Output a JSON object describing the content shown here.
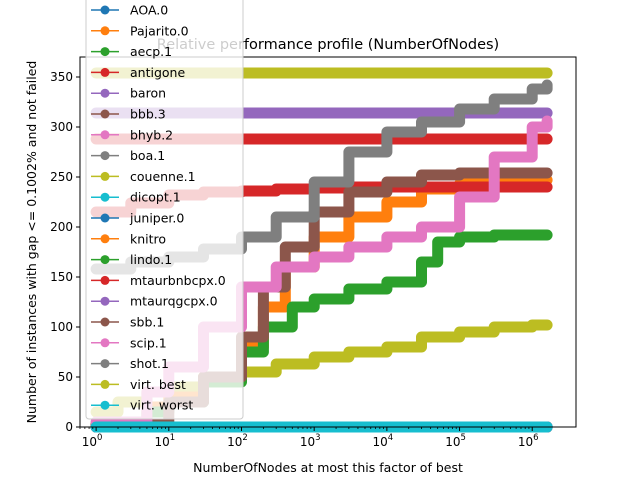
{
  "chart_data": {
    "type": "line",
    "title": "Relative performance profile (NumberOfNodes)",
    "xlabel": "NumberOfNodes at most this factor of best",
    "ylabel": "Number of instances with gap <= 0.1002% and not failed",
    "xscale": "log",
    "xlim": [
      0.6,
      4000000
    ],
    "ylim": [
      0,
      370
    ],
    "x_ticks": [
      {
        "value": 1,
        "label": "10",
        "exp": "0"
      },
      {
        "value": 10,
        "label": "10",
        "exp": "1"
      },
      {
        "value": 100,
        "label": "10",
        "exp": "2"
      },
      {
        "value": 1000,
        "label": "10",
        "exp": "3"
      },
      {
        "value": 10000,
        "label": "10",
        "exp": "4"
      },
      {
        "value": 100000,
        "label": "10",
        "exp": "5"
      },
      {
        "value": 1000000,
        "label": "10",
        "exp": "6"
      }
    ],
    "y_ticks": [
      {
        "value": 0,
        "label": "0"
      },
      {
        "value": 50,
        "label": "50"
      },
      {
        "value": 100,
        "label": "100"
      },
      {
        "value": 150,
        "label": "150"
      },
      {
        "value": 200,
        "label": "200"
      },
      {
        "value": 250,
        "label": "250"
      },
      {
        "value": 300,
        "label": "300"
      },
      {
        "value": 350,
        "label": "350"
      }
    ],
    "grid": false,
    "legend_position": "upper-left",
    "series": [
      {
        "name": "AOA.0",
        "color": "#1f77b4",
        "x": [
          1,
          1600000
        ],
        "y": [
          0,
          0
        ]
      },
      {
        "name": "Pajarito.0",
        "color": "#ff7f0e",
        "x": [
          1,
          1600000
        ],
        "y": [
          0,
          0
        ]
      },
      {
        "name": "aecp.1",
        "color": "#2ca02c",
        "x": [
          1,
          1600000
        ],
        "y": [
          0,
          0
        ]
      },
      {
        "name": "antigone",
        "color": "#d62728",
        "x": [
          1,
          1600000
        ],
        "y": [
          288,
          288
        ]
      },
      {
        "name": "baron",
        "color": "#9467bd",
        "x": [
          1,
          1600000
        ],
        "y": [
          314,
          314
        ]
      },
      {
        "name": "bbb.3",
        "color": "#8c564b",
        "x": [
          1,
          1600000
        ],
        "y": [
          0,
          0
        ]
      },
      {
        "name": "bhyb.2",
        "color": "#e377c2",
        "x": [
          1,
          1600000
        ],
        "y": [
          0,
          0
        ]
      },
      {
        "name": "boa.1",
        "color": "#7f7f7f",
        "x": [
          1,
          1600000
        ],
        "y": [
          0,
          0
        ]
      },
      {
        "name": "couenne.1",
        "color": "#bcbd22",
        "x": [
          1,
          2,
          5,
          10,
          30,
          100,
          300,
          1000,
          3000,
          10000,
          30000,
          100000,
          300000,
          1000000,
          1600000
        ],
        "y": [
          15,
          25,
          35,
          40,
          50,
          55,
          63,
          70,
          75,
          80,
          90,
          95,
          100,
          102,
          102
        ]
      },
      {
        "name": "dicopt.1",
        "color": "#17becf",
        "x": [
          1,
          1600000
        ],
        "y": [
          0,
          0
        ]
      },
      {
        "name": "juniper.0",
        "color": "#1f77b4",
        "x": [
          1,
          1600000
        ],
        "y": [
          0,
          0
        ]
      },
      {
        "name": "knitro",
        "color": "#ff7f0e",
        "x": [
          1,
          5,
          10,
          30,
          100,
          200,
          400,
          1000,
          3000,
          10000,
          30000,
          100000,
          300000,
          1000000,
          1600000
        ],
        "y": [
          3,
          20,
          30,
          50,
          80,
          120,
          160,
          190,
          210,
          225,
          238,
          243,
          245,
          247,
          247
        ]
      },
      {
        "name": "lindo.1",
        "color": "#2ca02c",
        "x": [
          1,
          5,
          10,
          30,
          100,
          200,
          500,
          1000,
          3000,
          10000,
          30000,
          50000,
          100000,
          300000,
          1000000,
          1600000
        ],
        "y": [
          2,
          15,
          25,
          45,
          75,
          100,
          120,
          128,
          138,
          145,
          165,
          185,
          190,
          192,
          192,
          192
        ]
      },
      {
        "name": "mtaurbnbcpx.0",
        "color": "#d62728",
        "x": [
          1,
          3,
          10,
          30,
          100,
          300,
          1000,
          3000,
          10000,
          100000,
          1000000,
          1600000
        ],
        "y": [
          215,
          224,
          232,
          235,
          236,
          238,
          239,
          240,
          240,
          240,
          240,
          240
        ]
      },
      {
        "name": "mtaurqgcpx.0",
        "color": "#9467bd",
        "x": [
          1,
          1600000
        ],
        "y": [
          0,
          0
        ]
      },
      {
        "name": "sbb.1",
        "color": "#8c564b",
        "x": [
          1,
          10,
          30,
          100,
          200,
          400,
          1000,
          3000,
          10000,
          30000,
          100000,
          300000,
          1000000,
          1600000
        ],
        "y": [
          2,
          25,
          50,
          90,
          140,
          180,
          215,
          235,
          245,
          252,
          254,
          254,
          254,
          254
        ]
      },
      {
        "name": "scip.1",
        "color": "#e377c2",
        "x": [
          1,
          5,
          10,
          30,
          100,
          300,
          1000,
          3000,
          10000,
          30000,
          100000,
          300000,
          1000000,
          1600000
        ],
        "y": [
          5,
          35,
          60,
          100,
          140,
          160,
          170,
          180,
          190,
          200,
          230,
          270,
          300,
          306
        ]
      },
      {
        "name": "shot.1",
        "color": "#7f7f7f",
        "x": [
          1,
          3,
          10,
          30,
          100,
          300,
          1000,
          3000,
          10000,
          30000,
          100000,
          300000,
          1000000,
          1600000
        ],
        "y": [
          158,
          165,
          170,
          178,
          190,
          210,
          245,
          275,
          295,
          305,
          318,
          328,
          338,
          342
        ]
      },
      {
        "name": "virt. best",
        "color": "#bcbd22",
        "x": [
          1,
          1600000
        ],
        "y": [
          354,
          354
        ]
      },
      {
        "name": "virt. worst",
        "color": "#17becf",
        "x": [
          1,
          1600000
        ],
        "y": [
          0,
          0
        ]
      }
    ]
  }
}
